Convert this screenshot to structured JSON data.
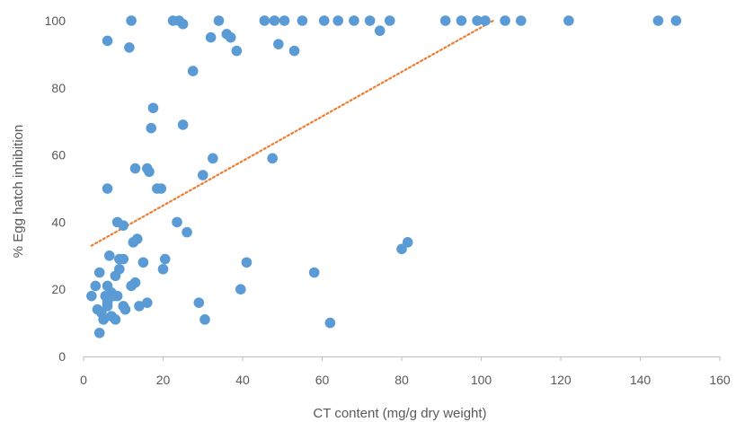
{
  "chart_data": {
    "type": "scatter",
    "title": "",
    "xlabel": "CT content (mg/g dry weight)",
    "ylabel": "% Egg hatch inhibition",
    "xlim": [
      0,
      160
    ],
    "ylim": [
      0,
      100
    ],
    "xticks": [
      0,
      20,
      40,
      60,
      80,
      100,
      120,
      140,
      160
    ],
    "yticks": [
      0,
      20,
      40,
      60,
      80,
      100
    ],
    "grid": false,
    "legend": "none",
    "colors": {
      "points": "#5B9BD5",
      "trendline": "#ED7D31",
      "axis": "#BFBFBF",
      "text": "#595959"
    },
    "trendline": {
      "style": "dotted",
      "x": [
        2,
        103
      ],
      "y": [
        33,
        100
      ]
    },
    "series": [
      {
        "points": [
          [
            12,
            100
          ],
          [
            22.5,
            100
          ],
          [
            24,
            100
          ],
          [
            25,
            99
          ],
          [
            34,
            100
          ],
          [
            45.5,
            100
          ],
          [
            48,
            100
          ],
          [
            50.5,
            100
          ],
          [
            55,
            100
          ],
          [
            60.5,
            100
          ],
          [
            64,
            100
          ],
          [
            68,
            100
          ],
          [
            72,
            100
          ],
          [
            74.5,
            97
          ],
          [
            77,
            100
          ],
          [
            91,
            100
          ],
          [
            95,
            100
          ],
          [
            99,
            100
          ],
          [
            101,
            100
          ],
          [
            106,
            100
          ],
          [
            110,
            100
          ],
          [
            122,
            100
          ],
          [
            144.5,
            100
          ],
          [
            149,
            100
          ],
          [
            6,
            94
          ],
          [
            11.5,
            92
          ],
          [
            32,
            95
          ],
          [
            36,
            96
          ],
          [
            37,
            95
          ],
          [
            38.5,
            91
          ],
          [
            49,
            93
          ],
          [
            53,
            91
          ],
          [
            27.5,
            85
          ],
          [
            17.5,
            74
          ],
          [
            17,
            68
          ],
          [
            25,
            69
          ],
          [
            32.5,
            59
          ],
          [
            47.5,
            59
          ],
          [
            13,
            56
          ],
          [
            16,
            56
          ],
          [
            16.5,
            55
          ],
          [
            30,
            54
          ],
          [
            6,
            50
          ],
          [
            18.5,
            50
          ],
          [
            19.5,
            50
          ],
          [
            8.5,
            40
          ],
          [
            10,
            39
          ],
          [
            23.5,
            40
          ],
          [
            26,
            37
          ],
          [
            13.5,
            35
          ],
          [
            12.5,
            34
          ],
          [
            81.5,
            34
          ],
          [
            80,
            32
          ],
          [
            6.5,
            30
          ],
          [
            9,
            29
          ],
          [
            10,
            29
          ],
          [
            15,
            28
          ],
          [
            20.5,
            29
          ],
          [
            41,
            28
          ],
          [
            4,
            25
          ],
          [
            9,
            26
          ],
          [
            20,
            26
          ],
          [
            58,
            25
          ],
          [
            8,
            24
          ],
          [
            3,
            21
          ],
          [
            6,
            21
          ],
          [
            7,
            19
          ],
          [
            12,
            21
          ],
          [
            13,
            22
          ],
          [
            39.5,
            20
          ],
          [
            2,
            18
          ],
          [
            5.5,
            18
          ],
          [
            7.5,
            18
          ],
          [
            8.5,
            18
          ],
          [
            6,
            16
          ],
          [
            10,
            15
          ],
          [
            10.5,
            14
          ],
          [
            14,
            15
          ],
          [
            16,
            16
          ],
          [
            29,
            16
          ],
          [
            3.5,
            14
          ],
          [
            4.5,
            13
          ],
          [
            5,
            11
          ],
          [
            6,
            15
          ],
          [
            7,
            12
          ],
          [
            8,
            11
          ],
          [
            30.5,
            11
          ],
          [
            62,
            10
          ],
          [
            4,
            7
          ]
        ]
      }
    ]
  }
}
